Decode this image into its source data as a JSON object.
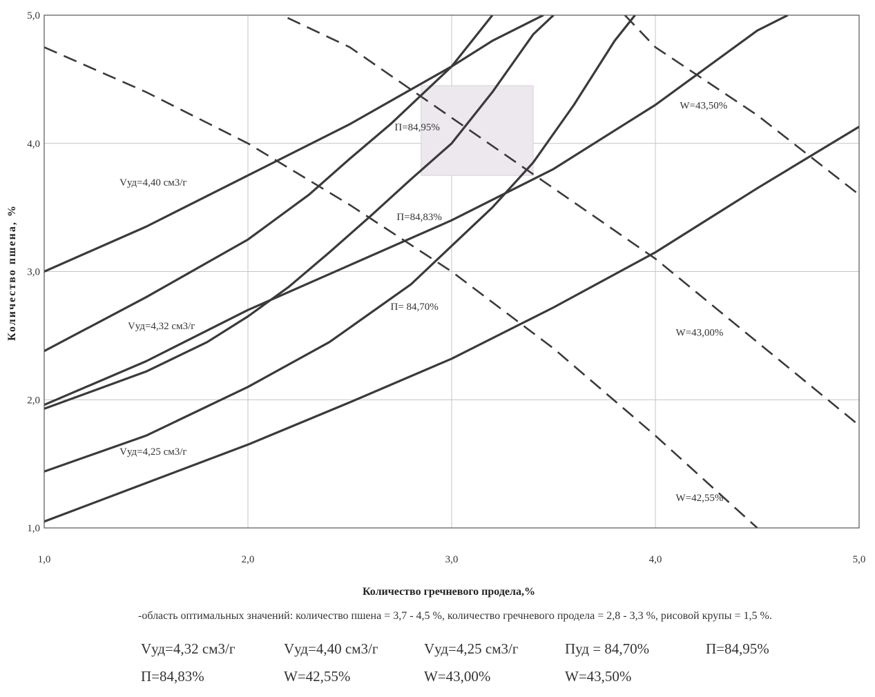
{
  "chart_data": {
    "type": "line",
    "xlabel": "Количество гречневого продела,%",
    "ylabel": "Количество пшена, %",
    "xlim": [
      1.0,
      5.0
    ],
    "ylim": [
      1.0,
      5.0
    ],
    "x_ticks": [
      "1,0",
      "2,0",
      "3,0",
      "4,0",
      "5,0"
    ],
    "y_ticks": [
      "1,0",
      "2,0",
      "3,0",
      "4,0",
      "5,0"
    ],
    "grid": true,
    "optimal_region": {
      "x": [
        2.85,
        3.4
      ],
      "y": [
        3.75,
        4.45
      ]
    },
    "series": [
      {
        "name": "Vуд=4,40 см3/г",
        "style": "solid",
        "x": [
          1.0,
          1.5,
          2.0,
          2.5,
          2.8,
          3.0,
          3.2,
          3.45
        ],
        "y": [
          3.0,
          3.35,
          3.75,
          4.15,
          4.42,
          4.6,
          4.8,
          5.0
        ]
      },
      {
        "name": "Vуд=4,32 см3/г",
        "style": "solid",
        "x": [
          1.0,
          1.5,
          2.0,
          2.3,
          2.5,
          2.7,
          2.9,
          3.0,
          3.2
        ],
        "y": [
          2.38,
          2.8,
          3.25,
          3.6,
          3.88,
          4.15,
          4.45,
          4.6,
          5.0
        ]
      },
      {
        "name": "",
        "style": "solid",
        "x": [
          1.0,
          1.5,
          1.8,
          2.0,
          2.2,
          2.4,
          2.6,
          2.8,
          3.0,
          3.2,
          3.4,
          3.5
        ],
        "y": [
          1.93,
          2.22,
          2.45,
          2.65,
          2.88,
          3.15,
          3.43,
          3.72,
          4.0,
          4.4,
          4.85,
          5.0
        ]
      },
      {
        "name": "",
        "style": "solid",
        "x": [
          1.0,
          1.5,
          2.0,
          2.5,
          3.0,
          3.5,
          4.0,
          4.5,
          4.65
        ],
        "y": [
          1.96,
          2.3,
          2.7,
          3.05,
          3.4,
          3.8,
          4.3,
          4.88,
          5.0
        ]
      },
      {
        "name": "Vуд=4,25 см3/г",
        "style": "solid",
        "x": [
          1.0,
          1.5,
          2.0,
          2.4,
          2.8,
          3.0,
          3.2,
          3.4,
          3.6,
          3.8,
          3.9
        ],
        "y": [
          1.44,
          1.72,
          2.1,
          2.45,
          2.9,
          3.2,
          3.5,
          3.85,
          4.3,
          4.8,
          5.0
        ]
      },
      {
        "name": "",
        "style": "solid",
        "x": [
          1.0,
          1.5,
          2.0,
          2.5,
          3.0,
          3.5,
          4.0,
          4.5,
          5.0
        ],
        "y": [
          1.05,
          1.35,
          1.65,
          1.98,
          2.32,
          2.72,
          3.15,
          3.65,
          4.13
        ]
      },
      {
        "name": "",
        "style": "dashed",
        "x": [
          1.0,
          1.5,
          2.0,
          2.5,
          3.0,
          3.5,
          4.0,
          4.5
        ],
        "y": [
          4.75,
          4.4,
          4.0,
          3.52,
          3.0,
          2.4,
          1.72,
          1.0
        ]
      },
      {
        "name": "",
        "style": "dashed",
        "x": [
          2.1,
          2.5,
          3.0,
          3.5,
          4.0,
          4.5,
          5.0
        ],
        "y": [
          5.05,
          4.75,
          4.2,
          3.65,
          3.1,
          2.45,
          1.8
        ]
      },
      {
        "name": "",
        "style": "dashed",
        "x": [
          3.85,
          4.0,
          4.5,
          5.0
        ],
        "y": [
          5.0,
          4.75,
          4.22,
          3.6
        ]
      }
    ],
    "annotations": [
      {
        "text": "Vуд=4,40 см3/г",
        "x": 1.37,
        "y": 3.67
      },
      {
        "text": "Vуд=4,32 см3/г",
        "x": 1.41,
        "y": 2.55
      },
      {
        "text": "Vуд=4,25 см3/г",
        "x": 1.37,
        "y": 1.57
      },
      {
        "text": "П=84,95%",
        "x": 2.72,
        "y": 4.1
      },
      {
        "text": "П=84,83%",
        "x": 2.73,
        "y": 3.4
      },
      {
        "text": "П= 84,70%",
        "x": 2.7,
        "y": 2.7
      },
      {
        "text": "W=43,50%",
        "x": 4.12,
        "y": 4.27
      },
      {
        "text": "W=43,00%",
        "x": 4.1,
        "y": 2.5
      },
      {
        "text": "W=42,55%",
        "x": 4.1,
        "y": 1.21
      }
    ]
  },
  "note": "-область оптимальных значений: количество пшена = 3,7 - 4,5 %, количество гречневого продела = 2,8 - 3,3 %, рисовой крупы = 1,5 %.",
  "legend": [
    "Vуд=4,32 см3/г",
    "Vуд=4,40 см3/г",
    "Vуд=4,25 см3/г",
    "Пуд = 84,70%",
    "П=84,95%",
    "П=84,83%",
    "W=42,55%",
    "W=43,00%",
    "W=43,50%"
  ]
}
